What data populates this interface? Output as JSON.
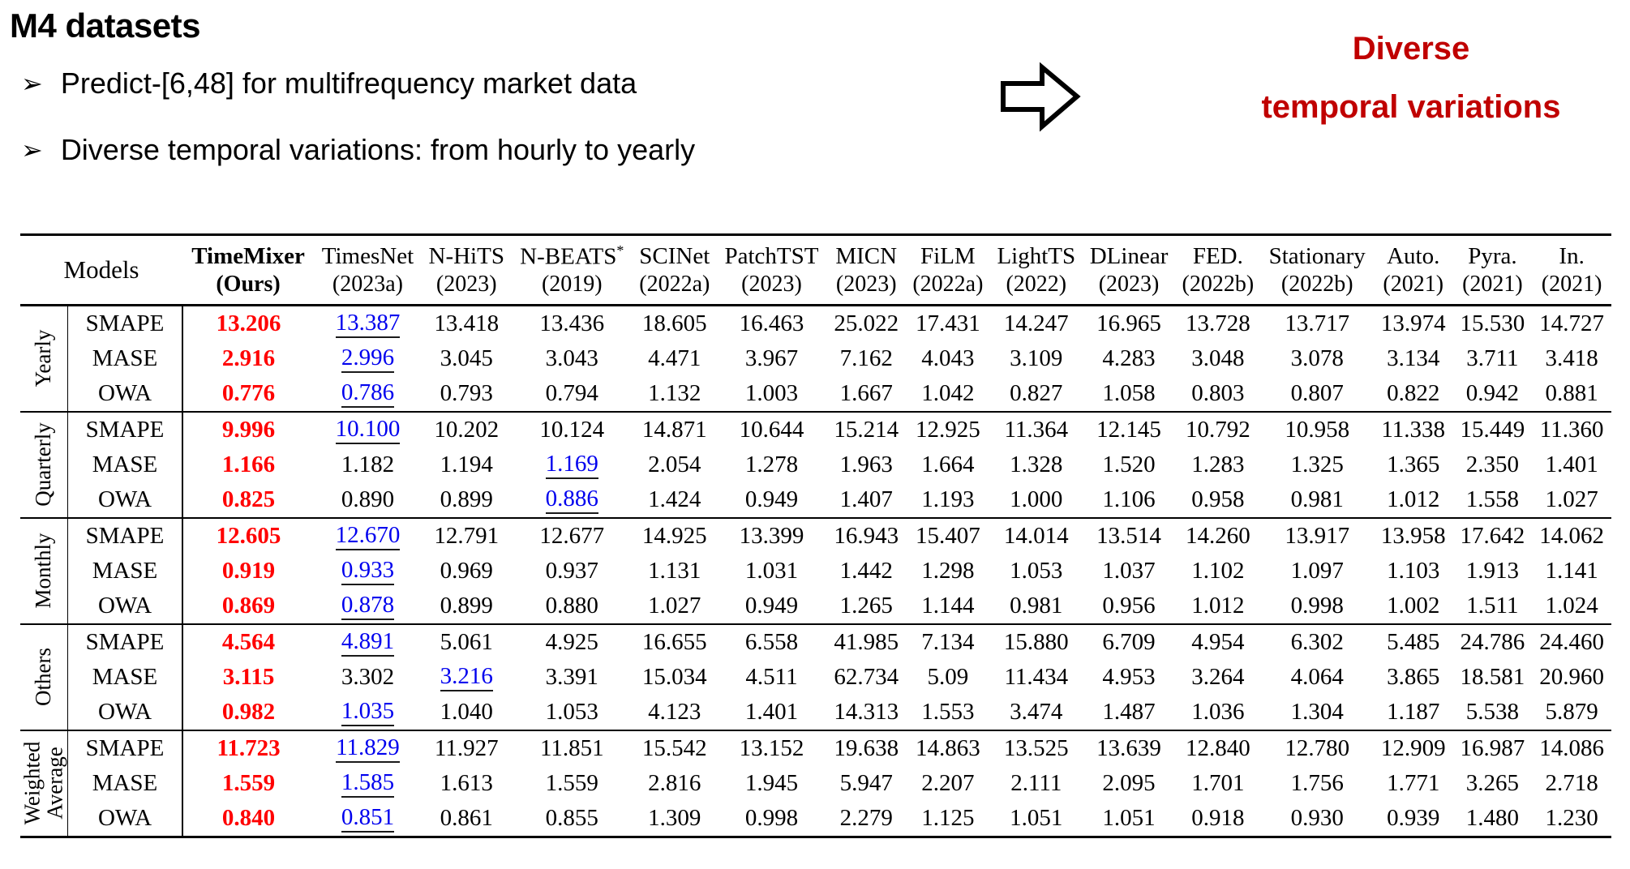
{
  "slide": {
    "title": "M4 datasets",
    "bullet_marker": "➢",
    "bullets": [
      "Predict-[6,48] for multifrequency market data",
      "Diverse temporal variations: from hourly to yearly"
    ],
    "callout": {
      "line1": "Diverse",
      "line2": "temporal variations",
      "color": "#c00000"
    },
    "arrow_icon": "right-block-arrow"
  },
  "table": {
    "models_header": "Models",
    "metrics": [
      "SMAPE",
      "MASE",
      "OWA"
    ],
    "columns": [
      {
        "name": "TimeMixer",
        "year": "(Ours)",
        "bold": true
      },
      {
        "name": "TimesNet",
        "year": "(2023a)"
      },
      {
        "name": "N-HiTS",
        "year": "(2023)"
      },
      {
        "name": "N-BEATS*",
        "year": "(2019)"
      },
      {
        "name": "SCINet",
        "year": "(2022a)"
      },
      {
        "name": "PatchTST",
        "year": "(2023)"
      },
      {
        "name": "MICN",
        "year": "(2023)"
      },
      {
        "name": "FiLM",
        "year": "(2022a)"
      },
      {
        "name": "LightTS",
        "year": "(2022)"
      },
      {
        "name": "DLinear",
        "year": "(2023)"
      },
      {
        "name": "FED.",
        "year": "(2022b)"
      },
      {
        "name": "Stationary",
        "year": "(2022b)"
      },
      {
        "name": "Auto.",
        "year": "(2021)"
      },
      {
        "name": "Pyra.",
        "year": "(2021)"
      },
      {
        "name": "In.",
        "year": "(2021)"
      }
    ],
    "best_color": "#ff0000",
    "second_color": "#0000ee",
    "groups": [
      {
        "label_lines": [
          "Yearly"
        ],
        "rows": [
          {
            "metric": "SMAPE",
            "second": 1,
            "values": [
              "13.206",
              "13.387",
              "13.418",
              "13.436",
              "18.605",
              "16.463",
              "25.022",
              "17.431",
              "14.247",
              "16.965",
              "13.728",
              "13.717",
              "13.974",
              "15.530",
              "14.727"
            ]
          },
          {
            "metric": "MASE",
            "second": 1,
            "values": [
              "2.916",
              "2.996",
              "3.045",
              "3.043",
              "4.471",
              "3.967",
              "7.162",
              "4.043",
              "3.109",
              "4.283",
              "3.048",
              "3.078",
              "3.134",
              "3.711",
              "3.418"
            ]
          },
          {
            "metric": "OWA",
            "second": 1,
            "values": [
              "0.776",
              "0.786",
              "0.793",
              "0.794",
              "1.132",
              "1.003",
              "1.667",
              "1.042",
              "0.827",
              "1.058",
              "0.803",
              "0.807",
              "0.822",
              "0.942",
              "0.881"
            ]
          }
        ]
      },
      {
        "label_lines": [
          "Quarterly"
        ],
        "rows": [
          {
            "metric": "SMAPE",
            "second": 1,
            "values": [
              "9.996",
              "10.100",
              "10.202",
              "10.124",
              "14.871",
              "10.644",
              "15.214",
              "12.925",
              "11.364",
              "12.145",
              "10.792",
              "10.958",
              "11.338",
              "15.449",
              "11.360"
            ]
          },
          {
            "metric": "MASE",
            "second": 3,
            "values": [
              "1.166",
              "1.182",
              "1.194",
              "1.169",
              "2.054",
              "1.278",
              "1.963",
              "1.664",
              "1.328",
              "1.520",
              "1.283",
              "1.325",
              "1.365",
              "2.350",
              "1.401"
            ]
          },
          {
            "metric": "OWA",
            "second": 3,
            "values": [
              "0.825",
              "0.890",
              "0.899",
              "0.886",
              "1.424",
              "0.949",
              "1.407",
              "1.193",
              "1.000",
              "1.106",
              "0.958",
              "0.981",
              "1.012",
              "1.558",
              "1.027"
            ]
          }
        ]
      },
      {
        "label_lines": [
          "Monthly"
        ],
        "rows": [
          {
            "metric": "SMAPE",
            "second": 1,
            "values": [
              "12.605",
              "12.670",
              "12.791",
              "12.677",
              "14.925",
              "13.399",
              "16.943",
              "15.407",
              "14.014",
              "13.514",
              "14.260",
              "13.917",
              "13.958",
              "17.642",
              "14.062"
            ]
          },
          {
            "metric": "MASE",
            "second": 1,
            "values": [
              "0.919",
              "0.933",
              "0.969",
              "0.937",
              "1.131",
              "1.031",
              "1.442",
              "1.298",
              "1.053",
              "1.037",
              "1.102",
              "1.097",
              "1.103",
              "1.913",
              "1.141"
            ]
          },
          {
            "metric": "OWA",
            "second": 1,
            "values": [
              "0.869",
              "0.878",
              "0.899",
              "0.880",
              "1.027",
              "0.949",
              "1.265",
              "1.144",
              "0.981",
              "0.956",
              "1.012",
              "0.998",
              "1.002",
              "1.511",
              "1.024"
            ]
          }
        ]
      },
      {
        "label_lines": [
          "Others"
        ],
        "rows": [
          {
            "metric": "SMAPE",
            "second": 1,
            "values": [
              "4.564",
              "4.891",
              "5.061",
              "4.925",
              "16.655",
              "6.558",
              "41.985",
              "7.134",
              "15.880",
              "6.709",
              "4.954",
              "6.302",
              "5.485",
              "24.786",
              "24.460"
            ]
          },
          {
            "metric": "MASE",
            "second": 2,
            "values": [
              "3.115",
              "3.302",
              "3.216",
              "3.391",
              "15.034",
              "4.511",
              "62.734",
              "5.09",
              "11.434",
              "4.953",
              "3.264",
              "4.064",
              "3.865",
              "18.581",
              "20.960"
            ]
          },
          {
            "metric": "OWA",
            "second": 1,
            "values": [
              "0.982",
              "1.035",
              "1.040",
              "1.053",
              "4.123",
              "1.401",
              "14.313",
              "1.553",
              "3.474",
              "1.487",
              "1.036",
              "1.304",
              "1.187",
              "5.538",
              "5.879"
            ]
          }
        ]
      },
      {
        "label_lines": [
          "Weighted",
          "Average"
        ],
        "rows": [
          {
            "metric": "SMAPE",
            "second": 1,
            "values": [
              "11.723",
              "11.829",
              "11.927",
              "11.851",
              "15.542",
              "13.152",
              "19.638",
              "14.863",
              "13.525",
              "13.639",
              "12.840",
              "12.780",
              "12.909",
              "16.987",
              "14.086"
            ]
          },
          {
            "metric": "MASE",
            "second": 1,
            "values": [
              "1.559",
              "1.585",
              "1.613",
              "1.559",
              "2.816",
              "1.945",
              "5.947",
              "2.207",
              "2.111",
              "2.095",
              "1.701",
              "1.756",
              "1.771",
              "3.265",
              "2.718"
            ]
          },
          {
            "metric": "OWA",
            "second": 1,
            "values": [
              "0.840",
              "0.851",
              "0.861",
              "0.855",
              "1.309",
              "0.998",
              "2.279",
              "1.125",
              "1.051",
              "1.051",
              "0.918",
              "0.930",
              "0.939",
              "1.480",
              "1.230"
            ]
          }
        ]
      }
    ]
  }
}
